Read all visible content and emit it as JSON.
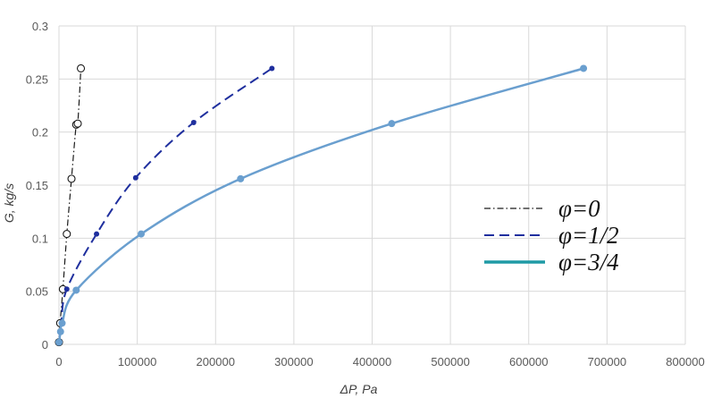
{
  "chart_data": {
    "type": "scatter",
    "xlabel": "ΔP, Pa",
    "ylabel": "G, kg/s",
    "xlim": [
      0,
      800000
    ],
    "ylim": [
      0,
      0.3
    ],
    "x_ticks": [
      "0",
      "100000",
      "200000",
      "300000",
      "400000",
      "500000",
      "600000",
      "700000",
      "800000"
    ],
    "y_ticks": [
      "0",
      "0.05",
      "0.1",
      "0.15",
      "0.2",
      "0.25",
      "0.3"
    ],
    "grid": true,
    "legend_position": "right",
    "series": [
      {
        "name": "φ=0",
        "color": "#1a1a1a",
        "line_style": "dash-dot",
        "marker": "open-circle",
        "points": [
          [
            0,
            0.002
          ],
          [
            1500,
            0.02
          ],
          [
            5000,
            0.052
          ],
          [
            10000,
            0.104
          ],
          [
            16000,
            0.156
          ],
          [
            22000,
            0.207
          ],
          [
            24000,
            0.208
          ],
          [
            28000,
            0.26
          ]
        ]
      },
      {
        "name": "φ=1/2",
        "color": "#1f2f9e",
        "line_style": "dashed",
        "marker": "filled-circle",
        "points": [
          [
            0,
            0.002
          ],
          [
            3000,
            0.02
          ],
          [
            10000,
            0.052
          ],
          [
            48000,
            0.104
          ],
          [
            98000,
            0.157
          ],
          [
            172000,
            0.209
          ],
          [
            272000,
            0.26
          ]
        ]
      },
      {
        "name": "φ=3/4",
        "color": "#6a9fcf",
        "legend_color": "#1f9aa5",
        "line_style": "solid",
        "marker": "filled-circle",
        "points": [
          [
            0,
            0.002
          ],
          [
            2000,
            0.012
          ],
          [
            4000,
            0.02
          ],
          [
            22000,
            0.051
          ],
          [
            105000,
            0.104
          ],
          [
            232000,
            0.156
          ],
          [
            425000,
            0.208
          ],
          [
            670000,
            0.26
          ]
        ]
      }
    ]
  }
}
